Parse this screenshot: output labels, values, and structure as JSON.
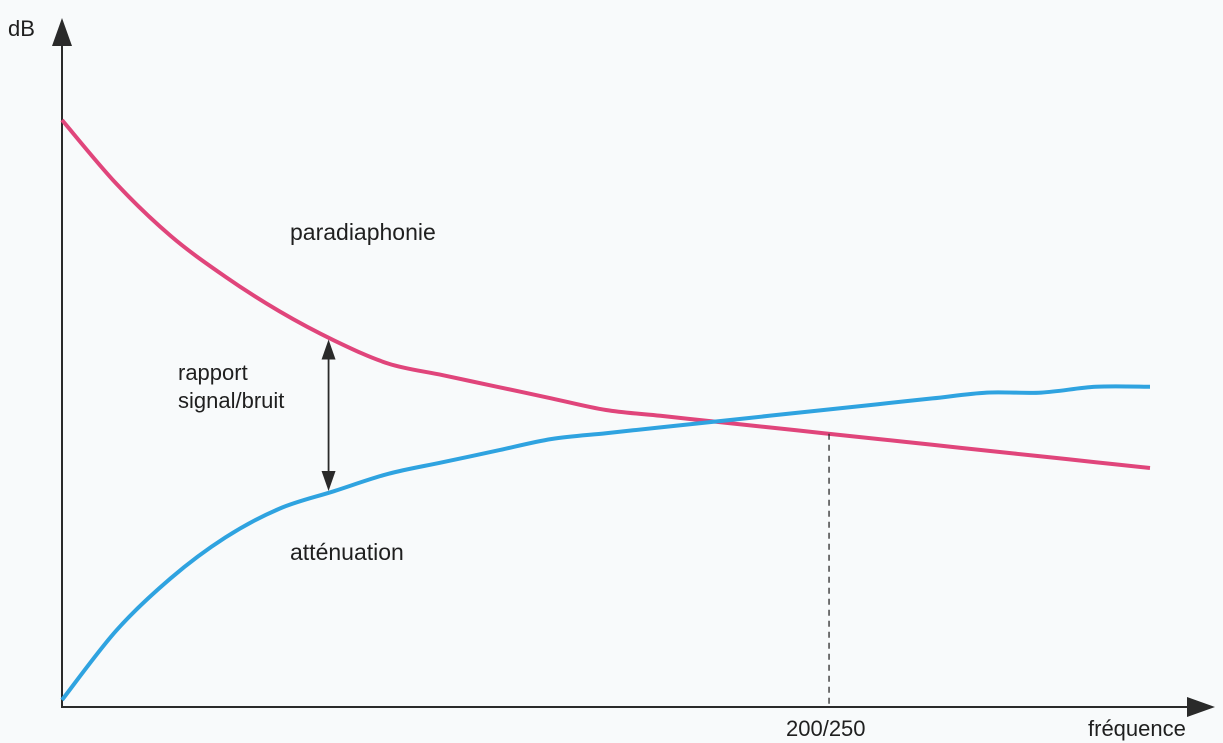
{
  "chart_data": {
    "type": "line",
    "xlabel": "fréquence",
    "ylabel": "dB",
    "x_tick_labels": [
      "200/250"
    ],
    "xlim": [
      0,
      1
    ],
    "ylim": [
      0,
      1
    ],
    "grid": false,
    "series": [
      {
        "name": "paradiaphonie",
        "color": "#e0457b",
        "x": [
          0,
          0.05,
          0.1,
          0.15,
          0.2,
          0.25,
          0.3,
          0.35,
          0.4,
          0.45,
          0.5,
          0.55,
          0.6,
          0.65,
          0.7,
          0.75,
          0.8,
          0.85,
          0.9,
          0.95,
          1.0
        ],
        "y": [
          1.0,
          0.89,
          0.8,
          0.73,
          0.67,
          0.62,
          0.58,
          0.56,
          0.54,
          0.52,
          0.5,
          0.49,
          0.48,
          0.47,
          0.46,
          0.45,
          0.44,
          0.43,
          0.42,
          0.41,
          0.4
        ]
      },
      {
        "name": "atténuation",
        "color": "#2fa3e0",
        "x": [
          0,
          0.05,
          0.1,
          0.15,
          0.2,
          0.25,
          0.3,
          0.35,
          0.4,
          0.45,
          0.5,
          0.55,
          0.6,
          0.65,
          0.7,
          0.75,
          0.8,
          0.85,
          0.9,
          0.95,
          1.0
        ],
        "y": [
          0.0,
          0.12,
          0.21,
          0.28,
          0.33,
          0.36,
          0.39,
          0.41,
          0.43,
          0.45,
          0.46,
          0.47,
          0.48,
          0.49,
          0.5,
          0.51,
          0.52,
          0.53,
          0.53,
          0.54,
          0.54
        ]
      }
    ],
    "annotations": {
      "crossing": {
        "x": 0.705,
        "label": "200/250"
      },
      "gap": {
        "x": 0.245,
        "label_line1": "rapport",
        "label_line2": "signal/bruit"
      }
    }
  }
}
